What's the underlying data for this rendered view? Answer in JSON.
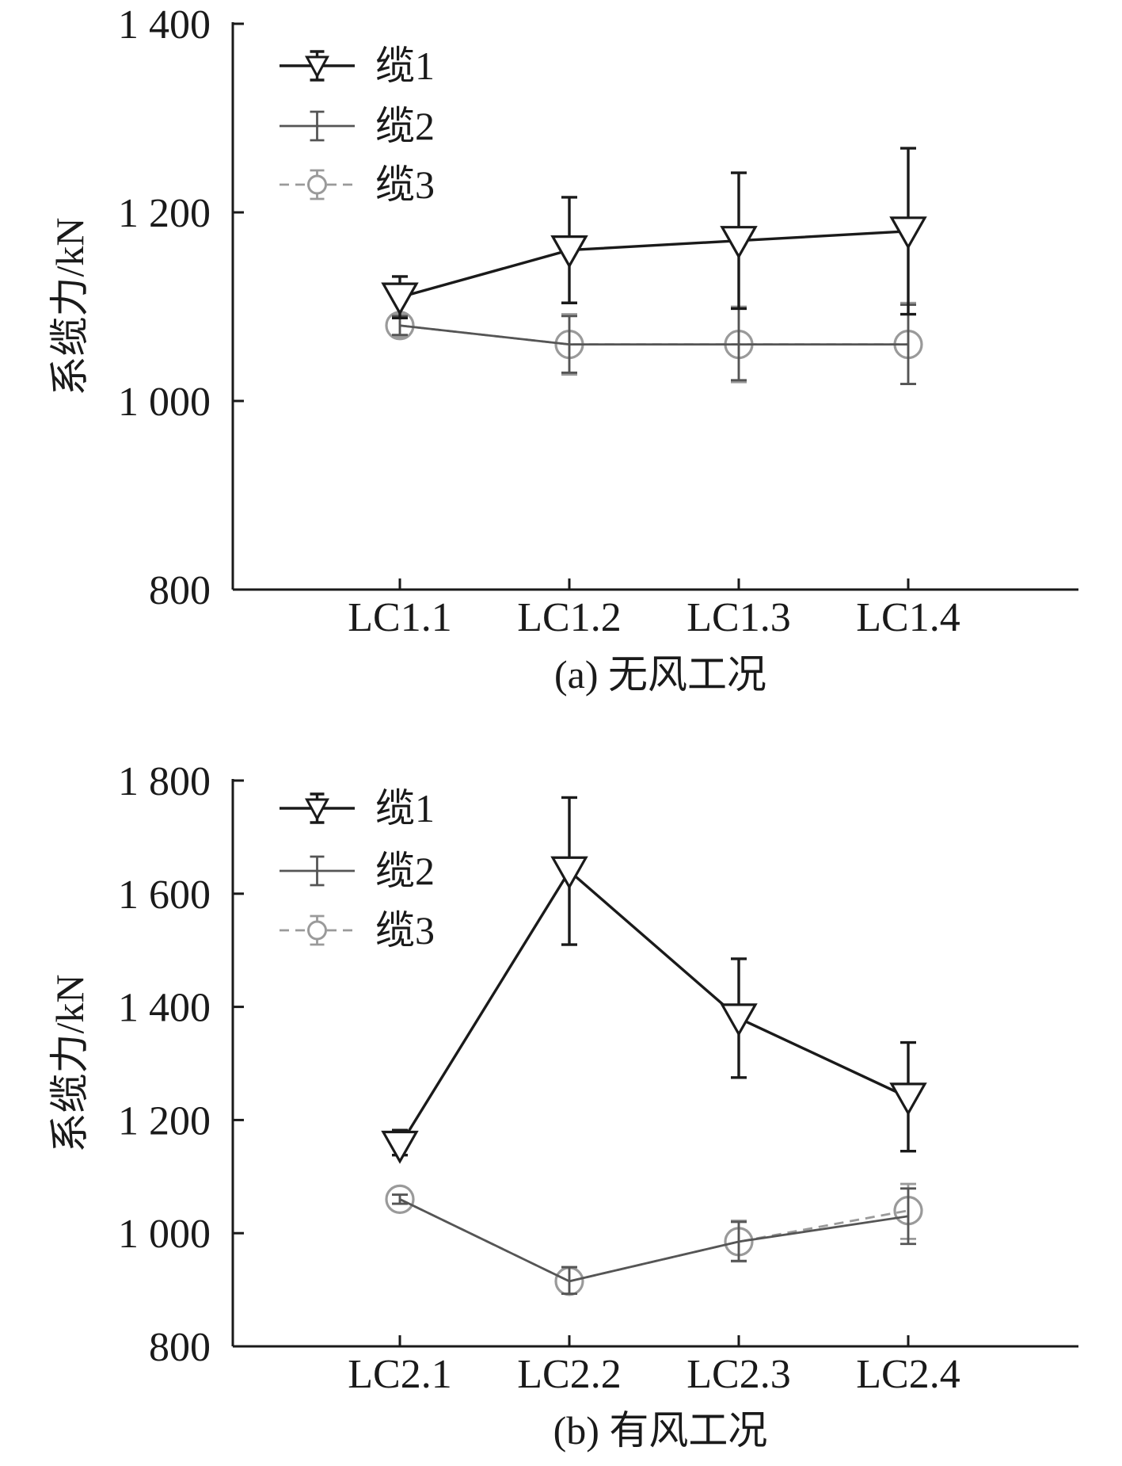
{
  "chart_data": [
    {
      "type": "line",
      "caption": "(a) 无风工况",
      "ylabel": "系缆力/kN",
      "xlabel": "",
      "categories": [
        "LC1.1",
        "LC1.2",
        "LC1.3",
        "LC1.4"
      ],
      "ylim": [
        800,
        1400
      ],
      "yticks": [
        800,
        1000,
        1200,
        1400
      ],
      "ytick_labels": [
        "800",
        "1 000",
        "1 200",
        "1 400"
      ],
      "legend_position": "top-left",
      "grid": false,
      "series": [
        {
          "name": "缆1",
          "values": [
            1110,
            1160,
            1170,
            1180
          ],
          "err_low": [
            1088,
            1104,
            1098,
            1092
          ],
          "err_high": [
            1132,
            1216,
            1242,
            1268
          ],
          "color": "#1a1a1a",
          "marker": "triangle-down",
          "dash": "solid"
        },
        {
          "name": "缆2",
          "values": [
            1080,
            1060,
            1060,
            1060
          ],
          "err_low": [
            1070,
            1030,
            1022,
            1018
          ],
          "err_high": [
            1090,
            1090,
            1098,
            1102
          ],
          "color": "#555555",
          "marker": "none",
          "dash": "solid"
        },
        {
          "name": "缆3",
          "values": [
            1080,
            1060,
            1060,
            1060
          ],
          "err_low": [
            1068,
            1028,
            1020,
            1018
          ],
          "err_high": [
            1092,
            1092,
            1100,
            1104
          ],
          "color": "#9a9a9a",
          "marker": "circle",
          "dash": "dashed"
        }
      ]
    },
    {
      "type": "line",
      "caption": "(b) 有风工况",
      "ylabel": "系缆力/kN",
      "xlabel": "",
      "categories": [
        "LC2.1",
        "LC2.2",
        "LC2.3",
        "LC2.4"
      ],
      "ylim": [
        800,
        1800
      ],
      "yticks": [
        800,
        1000,
        1200,
        1400,
        1600,
        1800
      ],
      "ytick_labels": [
        "800",
        "1 000",
        "1 200",
        "1 400",
        "1 600",
        "1 800"
      ],
      "legend_position": "top-left",
      "grid": false,
      "series": [
        {
          "name": "缆1",
          "values": [
            1155,
            1640,
            1380,
            1240
          ],
          "err_low": [
            1138,
            1510,
            1275,
            1145
          ],
          "err_high": [
            1182,
            1770,
            1485,
            1337
          ],
          "color": "#1a1a1a",
          "marker": "triangle-down",
          "dash": "solid"
        },
        {
          "name": "缆2",
          "values": [
            1060,
            915,
            985,
            1030
          ],
          "err_low": [
            1052,
            893,
            951,
            981
          ],
          "err_high": [
            1068,
            940,
            1020,
            1079
          ],
          "color": "#555555",
          "marker": "none",
          "dash": "solid"
        },
        {
          "name": "缆3",
          "values": [
            1060,
            915,
            985,
            1040
          ],
          "err_low": [
            1052,
            893,
            950,
            990
          ],
          "err_high": [
            1068,
            940,
            1022,
            1087
          ],
          "color": "#9a9a9a",
          "marker": "circle",
          "dash": "dashed"
        }
      ]
    }
  ]
}
